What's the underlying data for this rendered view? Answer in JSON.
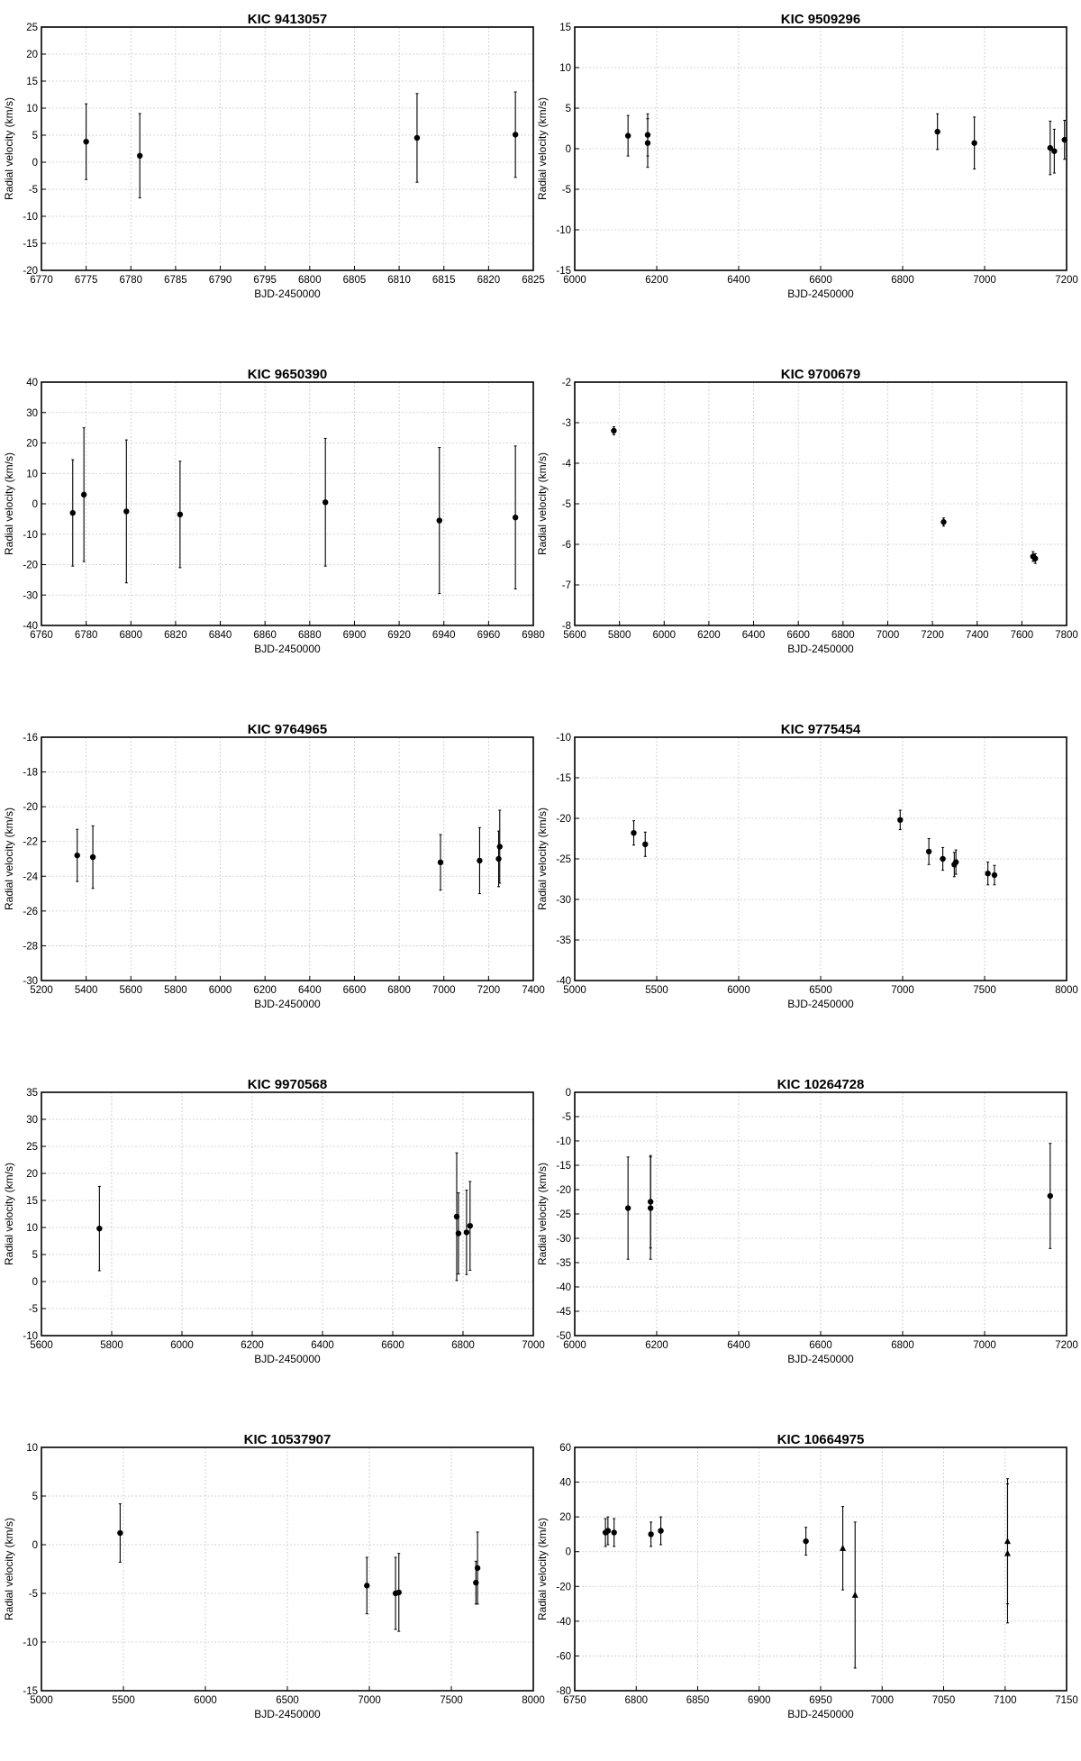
{
  "chart_data": [
    {
      "type": "scatter",
      "title": "KIC 9413057",
      "xlabel": "BJD-2450000",
      "ylabel": "Radial velocity (km/s)",
      "xlim": [
        6770,
        6825
      ],
      "ylim": [
        -20,
        25
      ],
      "xticks": [
        6770,
        6775,
        6780,
        6785,
        6790,
        6795,
        6800,
        6805,
        6810,
        6815,
        6820,
        6825
      ],
      "yticks": [
        -20,
        -15,
        -10,
        -5,
        0,
        5,
        10,
        15,
        20,
        25
      ],
      "grid": true,
      "points": [
        {
          "x": 6775,
          "y": 3.8,
          "err": 7.0
        },
        {
          "x": 6781,
          "y": 1.2,
          "err": 7.8
        },
        {
          "x": 6812,
          "y": 4.5,
          "err": 8.2
        },
        {
          "x": 6823,
          "y": 5.1,
          "err": 7.9
        }
      ]
    },
    {
      "type": "scatter",
      "title": "KIC 9509296",
      "xlabel": "BJD-2450000",
      "ylabel": "Radial velocity (km/s)",
      "xlim": [
        6000,
        7200
      ],
      "ylim": [
        -15,
        15
      ],
      "xticks": [
        6000,
        6200,
        6400,
        6600,
        6800,
        7000,
        7200
      ],
      "yticks": [
        -15,
        -10,
        -5,
        0,
        5,
        10,
        15
      ],
      "grid": true,
      "points": [
        {
          "x": 6130,
          "y": 1.6,
          "err": 2.5
        },
        {
          "x": 6178,
          "y": 1.7,
          "err": 2.6
        },
        {
          "x": 6178,
          "y": 0.7,
          "err": 3.0
        },
        {
          "x": 6885,
          "y": 2.1,
          "err": 2.2
        },
        {
          "x": 6975,
          "y": 0.7,
          "err": 3.2
        },
        {
          "x": 7160,
          "y": 0.1,
          "err": 3.3
        },
        {
          "x": 7170,
          "y": -0.3,
          "err": 2.7
        },
        {
          "x": 7195,
          "y": 1.1,
          "err": 2.4
        }
      ]
    },
    {
      "type": "scatter",
      "title": "KIC 9650390",
      "xlabel": "BJD-2450000",
      "ylabel": "Radial velocity (km/s)",
      "xlim": [
        6760,
        6980
      ],
      "ylim": [
        -40,
        40
      ],
      "xticks": [
        6760,
        6780,
        6800,
        6820,
        6840,
        6860,
        6880,
        6900,
        6920,
        6940,
        6960,
        6980
      ],
      "yticks": [
        -40,
        -30,
        -20,
        -10,
        0,
        10,
        20,
        30,
        40
      ],
      "grid": true,
      "points": [
        {
          "x": 6774,
          "y": -3,
          "err": 17.5
        },
        {
          "x": 6779,
          "y": 3,
          "err": 22
        },
        {
          "x": 6798,
          "y": -2.5,
          "err": 23.5
        },
        {
          "x": 6822,
          "y": -3.5,
          "err": 17.5
        },
        {
          "x": 6887,
          "y": 0.5,
          "err": 21
        },
        {
          "x": 6938,
          "y": -5.5,
          "err": 24
        },
        {
          "x": 6972,
          "y": -4.5,
          "err": 23.5
        }
      ]
    },
    {
      "type": "scatter",
      "title": "KIC 9700679",
      "xlabel": "BJD-2450000",
      "ylabel": "Radial velocity (km/s)",
      "xlim": [
        5600,
        7800
      ],
      "ylim": [
        -8,
        -2
      ],
      "xticks": [
        5600,
        5800,
        6000,
        6200,
        6400,
        6600,
        6800,
        7000,
        7200,
        7400,
        7600,
        7800
      ],
      "yticks": [
        -8,
        -7,
        -6,
        -5,
        -4,
        -3,
        -2
      ],
      "grid": true,
      "points": [
        {
          "x": 5775,
          "y": -3.2,
          "err": 0.1
        },
        {
          "x": 7250,
          "y": -5.45,
          "err": 0.1
        },
        {
          "x": 7650,
          "y": -6.3,
          "err": 0.12
        },
        {
          "x": 7660,
          "y": -6.35,
          "err": 0.12
        }
      ]
    },
    {
      "type": "scatter",
      "title": "KIC 9764965",
      "xlabel": "BJD-2450000",
      "ylabel": "Radial velocity (km/s)",
      "xlim": [
        5200,
        7400
      ],
      "ylim": [
        -30,
        -16
      ],
      "xticks": [
        5200,
        5400,
        5600,
        5800,
        6000,
        6200,
        6400,
        6600,
        6800,
        7000,
        7200,
        7400
      ],
      "yticks": [
        -30,
        -28,
        -26,
        -24,
        -22,
        -20,
        -18,
        -16
      ],
      "grid": true,
      "points": [
        {
          "x": 5360,
          "y": -22.8,
          "err": 1.5
        },
        {
          "x": 5430,
          "y": -22.9,
          "err": 1.8
        },
        {
          "x": 6985,
          "y": -23.2,
          "err": 1.6
        },
        {
          "x": 7160,
          "y": -23.1,
          "err": 1.9
        },
        {
          "x": 7245,
          "y": -23.0,
          "err": 1.6
        },
        {
          "x": 7250,
          "y": -22.3,
          "err": 2.1
        }
      ]
    },
    {
      "type": "scatter",
      "title": "KIC 9775454",
      "xlabel": "BJD-2450000",
      "ylabel": "Radial velocity (km/s)",
      "xlim": [
        5000,
        8000
      ],
      "ylim": [
        -40,
        -10
      ],
      "xticks": [
        5000,
        5500,
        6000,
        6500,
        7000,
        7500,
        8000
      ],
      "yticks": [
        -40,
        -35,
        -30,
        -25,
        -20,
        -15,
        -10
      ],
      "grid": true,
      "points": [
        {
          "x": 5360,
          "y": -21.8,
          "err": 1.5
        },
        {
          "x": 5430,
          "y": -23.2,
          "err": 1.5
        },
        {
          "x": 6985,
          "y": -20.2,
          "err": 1.2
        },
        {
          "x": 7160,
          "y": -24.1,
          "err": 1.6
        },
        {
          "x": 7245,
          "y": -25.0,
          "err": 1.4
        },
        {
          "x": 7315,
          "y": -25.7,
          "err": 1.5
        },
        {
          "x": 7325,
          "y": -25.4,
          "err": 1.5
        },
        {
          "x": 7520,
          "y": -26.8,
          "err": 1.4
        },
        {
          "x": 7560,
          "y": -27.0,
          "err": 1.2
        }
      ]
    },
    {
      "type": "scatter",
      "title": "KIC 9970568",
      "xlabel": "BJD-2450000",
      "ylabel": "Radial velocity (km/s)",
      "xlim": [
        5600,
        7000
      ],
      "ylim": [
        -10,
        35
      ],
      "xticks": [
        5600,
        5800,
        6000,
        6200,
        6400,
        6600,
        6800,
        7000
      ],
      "yticks": [
        -10,
        -5,
        0,
        5,
        10,
        15,
        20,
        25,
        30,
        35
      ],
      "grid": true,
      "points": [
        {
          "x": 5765,
          "y": 9.8,
          "err": 7.8
        },
        {
          "x": 6782,
          "y": 12.0,
          "err": 11.8
        },
        {
          "x": 6787,
          "y": 8.9,
          "err": 7.5
        },
        {
          "x": 6810,
          "y": 9.1,
          "err": 7.8
        },
        {
          "x": 6820,
          "y": 10.3,
          "err": 8.2
        }
      ]
    },
    {
      "type": "scatter",
      "title": "KIC 10264728",
      "xlabel": "BJD-2450000",
      "ylabel": "Radial velocity (km/s)",
      "xlim": [
        6000,
        7200
      ],
      "ylim": [
        -50,
        0
      ],
      "xticks": [
        6000,
        6200,
        6400,
        6600,
        6800,
        7000,
        7200
      ],
      "yticks": [
        -50,
        -45,
        -40,
        -35,
        -30,
        -25,
        -20,
        -15,
        -10,
        -5,
        0
      ],
      "grid": true,
      "points": [
        {
          "x": 6130,
          "y": -23.8,
          "err": 10.5
        },
        {
          "x": 6185,
          "y": -22.5,
          "err": 9.5
        },
        {
          "x": 6185,
          "y": -23.8,
          "err": 10.5
        },
        {
          "x": 7160,
          "y": -21.3,
          "err": 10.8
        }
      ]
    },
    {
      "type": "scatter",
      "title": "KIC 10537907",
      "xlabel": "BJD-2450000",
      "ylabel": "Radial velocity (km/s)",
      "xlim": [
        5000,
        8000
      ],
      "ylim": [
        -15,
        10
      ],
      "xticks": [
        5000,
        5500,
        6000,
        6500,
        7000,
        7500,
        8000
      ],
      "yticks": [
        -15,
        -10,
        -5,
        0,
        5,
        10
      ],
      "grid": true,
      "points": [
        {
          "x": 5480,
          "y": 1.2,
          "err": 3.0
        },
        {
          "x": 6985,
          "y": -4.2,
          "err": 2.9
        },
        {
          "x": 7160,
          "y": -5.0,
          "err": 3.7
        },
        {
          "x": 7180,
          "y": -4.9,
          "err": 4.0
        },
        {
          "x": 7650,
          "y": -3.9,
          "err": 2.2
        },
        {
          "x": 7660,
          "y": -2.4,
          "err": 3.7
        }
      ]
    },
    {
      "type": "scatter",
      "title": "KIC 10664975",
      "xlabel": "BJD-2450000",
      "ylabel": "Radial velocity (km/s)",
      "xlim": [
        6750,
        7150
      ],
      "ylim": [
        -80,
        60
      ],
      "xticks": [
        6750,
        6800,
        6850,
        6900,
        6950,
        7000,
        7050,
        7100,
        7150
      ],
      "yticks": [
        -80,
        -60,
        -40,
        -20,
        0,
        20,
        40,
        60
      ],
      "grid": true,
      "points": [
        {
          "x": 6775,
          "y": 11,
          "err": 8,
          "marker": "circle"
        },
        {
          "x": 6777,
          "y": 12,
          "err": 8,
          "marker": "circle"
        },
        {
          "x": 6782,
          "y": 11,
          "err": 8,
          "marker": "circle"
        },
        {
          "x": 6812,
          "y": 10,
          "err": 7,
          "marker": "circle"
        },
        {
          "x": 6820,
          "y": 12,
          "err": 8,
          "marker": "circle"
        },
        {
          "x": 6938,
          "y": 6,
          "err": 8,
          "marker": "circle"
        },
        {
          "x": 6968,
          "y": 2,
          "err": 24,
          "marker": "triangle"
        },
        {
          "x": 6978,
          "y": -25,
          "err": 42,
          "marker": "triangle"
        },
        {
          "x": 7102,
          "y": 6,
          "err": 36,
          "marker": "triangle"
        },
        {
          "x": 7102,
          "y": -1,
          "err": 40,
          "marker": "triangle"
        }
      ]
    }
  ]
}
